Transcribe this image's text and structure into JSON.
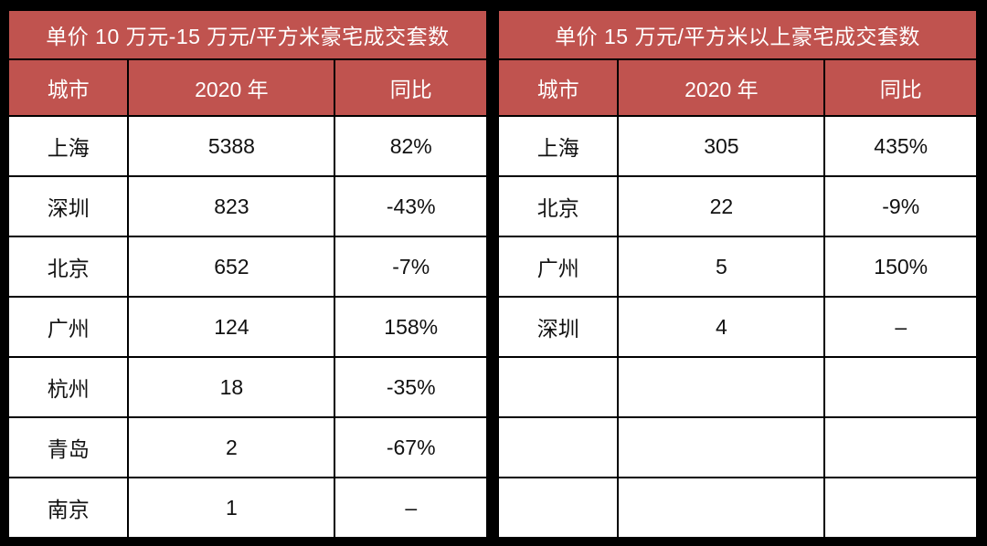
{
  "colors": {
    "header_bg": "#c0534f",
    "header_text": "#ffffff",
    "body_text": "#111111",
    "border": "#000000",
    "row_bg": "#ffffff",
    "frame_bg": "#000000"
  },
  "chart_data": [
    {
      "type": "table",
      "title": "单价 10 万元-15 万元/平方米豪宅成交套数",
      "columns": [
        "城市",
        "2020 年",
        "同比"
      ],
      "rows": [
        [
          "上海",
          "5388",
          "82%"
        ],
        [
          "深圳",
          "823",
          "-43%"
        ],
        [
          "北京",
          "652",
          "-7%"
        ],
        [
          "广州",
          "124",
          "158%"
        ],
        [
          "杭州",
          "18",
          "-35%"
        ],
        [
          "青岛",
          "2",
          "-67%"
        ],
        [
          "南京",
          "1",
          "–"
        ]
      ]
    },
    {
      "type": "table",
      "title": "单价 15 万元/平方米以上豪宅成交套数",
      "columns": [
        "城市",
        "2020 年",
        "同比"
      ],
      "rows": [
        [
          "上海",
          "305",
          "435%"
        ],
        [
          "北京",
          "22",
          "-9%"
        ],
        [
          "广州",
          "5",
          "150%"
        ],
        [
          "深圳",
          "4",
          "–"
        ],
        [
          "",
          "",
          ""
        ],
        [
          "",
          "",
          ""
        ],
        [
          "",
          "",
          ""
        ]
      ]
    }
  ]
}
